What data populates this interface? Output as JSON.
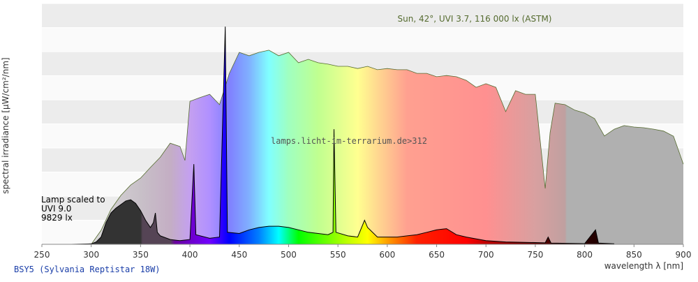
{
  "chart_data": {
    "type": "area",
    "y_label": "spectral irradiance [µW/cm²/nm]",
    "x_label": "wavelength λ [nm]",
    "watermark": "lamps.licht-im-terrarium.de>312",
    "annotations": [
      "Lamp scaled to",
      "UVI 9.0",
      "9829 lx"
    ],
    "xlim": [
      250,
      900
    ],
    "xticks": [
      250,
      300,
      350,
      400,
      450,
      500,
      550,
      600,
      650,
      700,
      750,
      800,
      850,
      900
    ],
    "ylim": [
      0,
      10
    ],
    "yticks": [
      0,
      1,
      2,
      3,
      4,
      5,
      6,
      7,
      8,
      9,
      10
    ],
    "series": [
      {
        "name": "Sun, 42°, UVI 3.7, 116 000 lx (ASTM)",
        "color": "#556b2f",
        "x": [
          300,
          310,
          320,
          330,
          340,
          350,
          360,
          370,
          380,
          390,
          395,
          400,
          410,
          420,
          430,
          440,
          450,
          460,
          470,
          480,
          490,
          500,
          510,
          520,
          530,
          540,
          550,
          560,
          570,
          580,
          590,
          600,
          610,
          620,
          630,
          640,
          650,
          660,
          670,
          680,
          690,
          700,
          710,
          720,
          730,
          740,
          750,
          760,
          765,
          770,
          780,
          790,
          800,
          810,
          820,
          830,
          840,
          850,
          860,
          870,
          880,
          890,
          900
        ],
        "values": [
          0,
          0.58,
          1.45,
          2.03,
          2.46,
          2.75,
          3.19,
          3.62,
          4.2,
          4.06,
          3.48,
          5.94,
          6.09,
          6.23,
          5.8,
          7.1,
          7.97,
          7.83,
          7.97,
          8.06,
          7.83,
          7.97,
          7.54,
          7.68,
          7.54,
          7.48,
          7.39,
          7.39,
          7.3,
          7.39,
          7.25,
          7.3,
          7.25,
          7.25,
          7.1,
          7.1,
          6.96,
          7.01,
          6.96,
          6.81,
          6.52,
          6.67,
          6.52,
          5.51,
          6.38,
          6.23,
          6.23,
          2.32,
          4.64,
          5.86,
          5.8,
          5.57,
          5.45,
          5.22,
          4.5,
          4.78,
          4.93,
          4.87,
          4.84,
          4.78,
          4.7,
          4.49,
          3.33
        ]
      },
      {
        "name": "BSY5 (Sylvania Reptistar 18W)",
        "color": "#000000",
        "x": [
          280,
          300,
          305,
          310,
          315,
          320,
          325,
          330,
          335,
          340,
          345,
          350,
          355,
          360,
          363,
          365,
          367,
          370,
          380,
          390,
          400,
          404,
          406,
          420,
          430,
          435.8,
          438,
          450,
          460,
          470,
          480,
          490,
          500,
          510,
          520,
          530,
          540,
          545,
          546,
          548,
          560,
          570,
          577,
          580,
          590,
          600,
          610,
          620,
          630,
          640,
          650,
          660,
          670,
          680,
          700,
          720,
          740,
          760,
          763,
          766,
          800,
          811,
          814,
          830
        ],
        "values": [
          0,
          0.02,
          0.1,
          0.3,
          0.9,
          1.3,
          1.5,
          1.65,
          1.8,
          1.85,
          1.7,
          1.4,
          1.0,
          0.7,
          0.9,
          1.3,
          0.5,
          0.35,
          0.2,
          0.15,
          0.2,
          3.33,
          0.4,
          0.25,
          0.3,
          9.04,
          0.5,
          0.45,
          0.6,
          0.7,
          0.75,
          0.75,
          0.7,
          0.6,
          0.5,
          0.45,
          0.4,
          0.5,
          4.78,
          0.5,
          0.35,
          0.3,
          1.0,
          0.7,
          0.3,
          0.3,
          0.3,
          0.35,
          0.4,
          0.5,
          0.6,
          0.65,
          0.4,
          0.3,
          0.15,
          0.1,
          0.08,
          0.06,
          0.3,
          0.05,
          0.03,
          0.6,
          0.05,
          0.02
        ]
      }
    ]
  }
}
